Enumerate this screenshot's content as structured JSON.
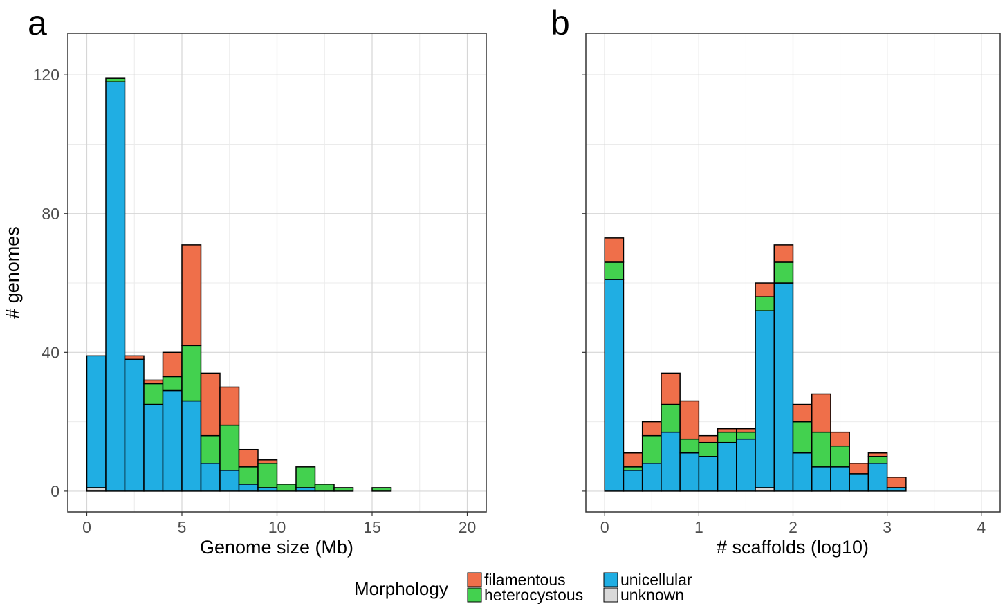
{
  "colors": {
    "filamentous": "#EF6F4A",
    "heterocystous": "#43D14F",
    "unicellular": "#20AEE3",
    "unknown": "#D9D9D9"
  },
  "y_axis_title": "# genomes",
  "legend": {
    "title": "Morphology",
    "entries": [
      {
        "key": "filamentous",
        "label": "filamentous"
      },
      {
        "key": "heterocystous",
        "label": "heterocystous"
      },
      {
        "key": "unicellular",
        "label": "unicellular"
      },
      {
        "key": "unknown",
        "label": "unknown"
      }
    ]
  },
  "chart_data": [
    {
      "type": "bar",
      "panel_tag": "a",
      "xlabel": "Genome size (Mb)",
      "ylabel": "# genomes",
      "xlim": [
        -1,
        21
      ],
      "ylim": [
        -6,
        132
      ],
      "xticks": [
        "0",
        "5",
        "10",
        "15",
        "20"
      ],
      "yticks": [
        "0",
        "40",
        "80",
        "120"
      ],
      "bin_width": 1,
      "bin_starts": [
        0,
        1,
        2,
        3,
        4,
        5,
        6,
        7,
        8,
        9,
        10,
        11,
        12,
        13,
        14,
        15,
        16,
        17,
        18,
        19
      ],
      "series": [
        {
          "key": "unknown",
          "name": "unknown",
          "values": [
            1,
            0,
            0,
            0,
            0,
            0,
            0,
            0,
            0,
            0,
            0,
            0,
            0,
            0,
            0,
            0,
            0,
            0,
            0,
            0
          ]
        },
        {
          "key": "unicellular",
          "name": "unicellular",
          "values": [
            38,
            118,
            38,
            25,
            29,
            26,
            8,
            6,
            2,
            1,
            0,
            1,
            0,
            0,
            0,
            0,
            0,
            0,
            0,
            0
          ]
        },
        {
          "key": "heterocystous",
          "name": "heterocystous",
          "values": [
            0,
            1,
            0,
            6,
            4,
            16,
            8,
            13,
            5,
            7,
            2,
            6,
            2,
            1,
            0,
            1,
            0,
            0,
            0,
            0
          ]
        },
        {
          "key": "filamentous",
          "name": "filamentous",
          "values": [
            0,
            0,
            1,
            1,
            7,
            29,
            18,
            11,
            5,
            1,
            0,
            0,
            0,
            0,
            0,
            0,
            0,
            0,
            0,
            0
          ]
        }
      ],
      "grid": true
    },
    {
      "type": "bar",
      "panel_tag": "b",
      "xlabel": "# scaffolds (log10)",
      "ylabel": "",
      "xlim": [
        -0.2,
        4.2
      ],
      "ylim": [
        -6,
        132
      ],
      "xticks": [
        "0",
        "1",
        "2",
        "3",
        "4"
      ],
      "bin_width": 0.2,
      "bin_starts": [
        0,
        0.2,
        0.4,
        0.6,
        0.8,
        1.0,
        1.2,
        1.4,
        1.6,
        1.8,
        2.0,
        2.2,
        2.4,
        2.6,
        2.8,
        3.0,
        3.2,
        3.4,
        3.6,
        3.8
      ],
      "series": [
        {
          "key": "unknown",
          "name": "unknown",
          "values": [
            0,
            0,
            0,
            0,
            0,
            0,
            0,
            0,
            1,
            0,
            0,
            0,
            0,
            0,
            0,
            0,
            0,
            0,
            0,
            0
          ]
        },
        {
          "key": "unicellular",
          "name": "unicellular",
          "values": [
            61,
            6,
            8,
            17,
            11,
            10,
            14,
            15,
            51,
            60,
            11,
            7,
            7,
            5,
            8,
            1,
            0,
            0,
            0,
            0
          ]
        },
        {
          "key": "heterocystous",
          "name": "heterocystous",
          "values": [
            5,
            1,
            8,
            8,
            4,
            4,
            3,
            2,
            4,
            6,
            9,
            10,
            6,
            0,
            2,
            0,
            0,
            0,
            0,
            0
          ]
        },
        {
          "key": "filamentous",
          "name": "filamentous",
          "values": [
            7,
            4,
            4,
            9,
            11,
            2,
            1,
            1,
            4,
            5,
            5,
            11,
            4,
            3,
            1,
            3,
            0,
            0,
            0,
            0
          ]
        }
      ],
      "grid": true
    }
  ]
}
